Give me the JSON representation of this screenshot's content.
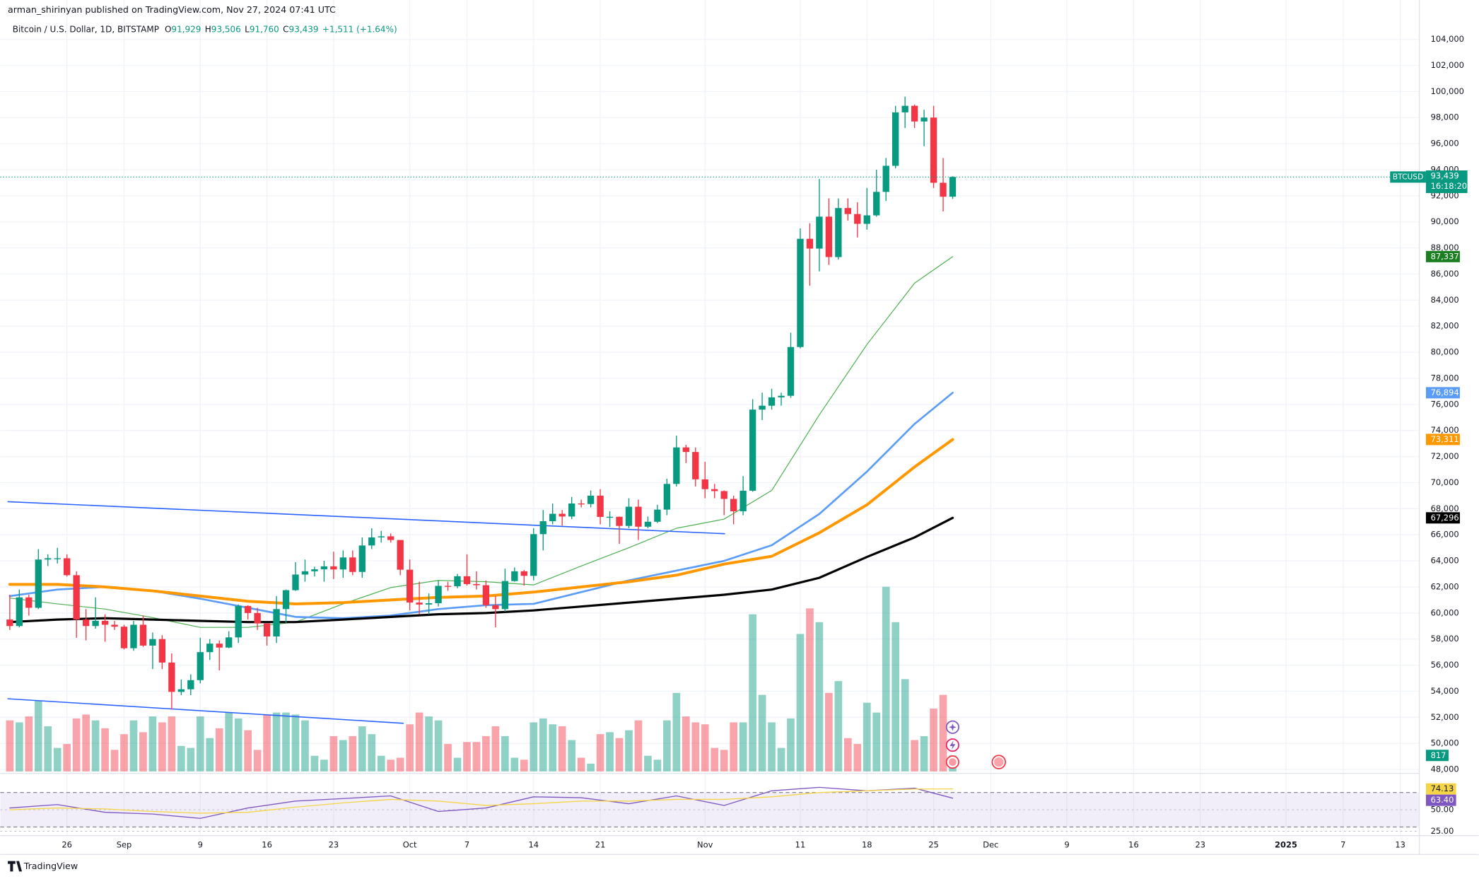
{
  "header": {
    "published": "arman_shirinyan published on TradingView.com, Nov 27, 2024 07:41 UTC",
    "symbol": "Bitcoin / U.S. Dollar, 1D, BITSTAMP",
    "ohlc": [
      {
        "key": "O",
        "value": "91,929"
      },
      {
        "key": "H",
        "value": "93,506"
      },
      {
        "key": "L",
        "value": "91,760"
      },
      {
        "key": "C",
        "value": "93,439"
      }
    ],
    "change": "+1,511 (+1.64%)"
  },
  "footer": "TradingView",
  "chart_data": {
    "type": "candlestick",
    "up_color": "#089981",
    "down_color": "#f23645",
    "x": [
      0,
      1,
      2,
      3,
      4,
      5,
      6,
      7,
      8,
      9,
      10,
      11,
      12,
      13,
      14,
      15,
      16,
      17,
      18,
      19,
      20,
      21,
      22,
      23,
      24,
      25,
      26,
      27,
      28,
      29,
      30,
      31,
      32,
      33,
      34,
      35,
      36,
      37,
      38,
      39,
      40,
      41,
      42,
      43,
      44,
      45,
      46,
      47,
      48,
      49,
      50,
      51,
      52,
      53,
      54,
      55,
      56,
      57,
      58,
      59,
      60,
      61,
      62,
      63,
      64,
      65,
      66,
      67,
      68,
      69,
      70,
      71,
      72,
      73,
      74,
      75,
      76,
      77,
      78,
      79,
      80,
      81,
      82,
      83,
      84,
      85,
      86,
      87,
      88,
      89,
      90,
      91,
      92,
      93,
      94,
      95,
      96,
      97,
      98,
      99
    ],
    "open": [
      59500,
      59000,
      61200,
      60400,
      64100,
      64200,
      64200,
      62900,
      59500,
      59000,
      59400,
      59100,
      58950,
      57300,
      59100,
      57500,
      58000,
      56200,
      53950,
      54150,
      54850,
      57000,
      57650,
      57350,
      58130,
      60540,
      60000,
      59200,
      58200,
      60300,
      61750,
      62950,
      63200,
      63350,
      63580,
      63340,
      64260,
      63150,
      65180,
      65800,
      65880,
      65600,
      63320,
      60800,
      60650,
      60750,
      62080,
      62050,
      62820,
      62220,
      62130,
      60600,
      60300,
      62450,
      63200,
      62850,
      66050,
      67040,
      67610,
      67400,
      68400,
      68360,
      69000,
      67370,
      67380,
      66680,
      68150,
      66620,
      67000,
      67930,
      69900,
      72700,
      72350,
      70250,
      69500,
      69350,
      68750,
      67800,
      69380,
      75600,
      75900,
      76540,
      76660,
      80400,
      88700,
      87950,
      90400,
      87300,
      91060,
      90600,
      89850,
      90500,
      92300,
      94300,
      98400,
      98900,
      97700,
      98000,
      93000,
      91929
    ],
    "high": [
      61400,
      61800,
      61400,
      64900,
      64500,
      65000,
      64500,
      63200,
      60300,
      61200,
      59900,
      59400,
      59100,
      59400,
      59800,
      58500,
      58300,
      56900,
      54900,
      55300,
      58100,
      58000,
      57900,
      58600,
      60650,
      60600,
      60400,
      59200,
      61300,
      61800,
      63900,
      64100,
      63550,
      64000,
      64700,
      64800,
      64800,
      65800,
      66500,
      66300,
      66100,
      65600,
      64100,
      62400,
      61500,
      62500,
      62400,
      63000,
      64500,
      63200,
      62500,
      61300,
      63400,
      63500,
      63300,
      66500,
      67900,
      68400,
      67900,
      68900,
      68700,
      69400,
      69500,
      67800,
      67400,
      68800,
      68700,
      67400,
      68300,
      70300,
      73600,
      72900,
      72700,
      71600,
      69900,
      69400,
      69000,
      70500,
      76400,
      76900,
      77200,
      76900,
      81500,
      89500,
      89900,
      93300,
      91800,
      91800,
      91800,
      91500,
      92600,
      94000,
      94900,
      98900,
      99600,
      99000,
      98600,
      98900,
      94900,
      93506
    ],
    "low": [
      58700,
      58900,
      59800,
      60300,
      63600,
      63800,
      62800,
      58100,
      57900,
      58800,
      57800,
      58700,
      57200,
      57100,
      57400,
      55700,
      55700,
      52600,
      53700,
      53700,
      54600,
      56400,
      55600,
      57300,
      57700,
      59500,
      58700,
      57500,
      57700,
      59200,
      61700,
      62400,
      62800,
      62400,
      62600,
      62700,
      62900,
      62700,
      64900,
      65400,
      65400,
      62900,
      60200,
      59900,
      59900,
      60500,
      61700,
      61900,
      62100,
      61800,
      60400,
      58900,
      60100,
      62400,
      62100,
      62500,
      64800,
      66800,
      66700,
      67200,
      68100,
      68100,
      66800,
      66600,
      65300,
      66500,
      65600,
      66500,
      66900,
      67500,
      69700,
      71500,
      69700,
      68800,
      68800,
      67500,
      66800,
      67500,
      69300,
      74800,
      75600,
      75900,
      76500,
      80300,
      85100,
      86200,
      86700,
      87100,
      90100,
      88800,
      89400,
      90400,
      91600,
      94100,
      97200,
      97200,
      95800,
      92600,
      90800,
      91760
    ],
    "close": [
      59000,
      61200,
      60400,
      64100,
      64200,
      64200,
      62900,
      59500,
      59000,
      59400,
      59100,
      58950,
      57300,
      59100,
      57500,
      58000,
      56200,
      53950,
      54150,
      54850,
      57000,
      57650,
      57350,
      58130,
      60540,
      60000,
      59200,
      58200,
      60300,
      61750,
      62950,
      63200,
      63350,
      63580,
      63340,
      64260,
      63150,
      65180,
      65800,
      65880,
      65600,
      63320,
      60800,
      60650,
      60750,
      62080,
      62050,
      62820,
      62220,
      62130,
      60600,
      60300,
      62450,
      63200,
      62850,
      66050,
      67040,
      67610,
      67400,
      68400,
      68360,
      69000,
      67370,
      67380,
      66680,
      68150,
      66620,
      67000,
      67930,
      69900,
      72700,
      72350,
      70250,
      69500,
      69350,
      68750,
      67800,
      69380,
      75600,
      75900,
      76540,
      76660,
      80400,
      88700,
      87950,
      90400,
      87300,
      91060,
      90600,
      89850,
      90500,
      92300,
      94300,
      98400,
      98900,
      97700,
      98000,
      93000,
      91929,
      93439
    ],
    "last_label": "93,439",
    "symbol_label": "BTCUSD",
    "countdown": "16:18:20",
    "volume": [
      2600,
      2500,
      2800,
      3600,
      2300,
      1200,
      1400,
      2700,
      2900,
      2600,
      2200,
      1100,
      1900,
      2600,
      2000,
      2800,
      2500,
      2800,
      1300,
      1200,
      2800,
      1700,
      2200,
      3000,
      2700,
      2100,
      1100,
      2900,
      3000,
      3000,
      2900,
      2600,
      800,
      600,
      1800,
      1600,
      1800,
      2300,
      1900,
      800,
      600,
      700,
      2400,
      3000,
      2800,
      2600,
      1400,
      700,
      1500,
      1500,
      1800,
      2300,
      1800,
      700,
      600,
      2500,
      2700,
      2400,
      2300,
      1600,
      700,
      400,
      1900,
      2000,
      1700,
      2100,
      2600,
      800,
      600,
      2600,
      4000,
      2800,
      2500,
      2400,
      1200,
      1100,
      2500,
      2500,
      8000,
      3900,
      2500,
      1200,
      2700,
      7000,
      8300,
      7600,
      4000,
      4600,
      1700,
      1400,
      3500,
      3000,
      9400,
      7600,
      4700,
      1600,
      1800,
      3200,
      3900,
      817
    ],
    "volume_ylim": [
      0,
      12000
    ],
    "volume_label": "817",
    "moving_averages": [
      {
        "color": "#4caf50",
        "width": 0.9,
        "x": [
          0,
          5,
          10,
          15,
          20,
          25,
          30,
          35,
          40,
          45,
          50,
          55,
          60,
          65,
          70,
          75,
          80,
          85,
          90,
          95,
          99
        ],
        "values": [
          61150,
          60700,
          60300,
          59650,
          58900,
          58900,
          59300,
          60700,
          61950,
          62500,
          62400,
          62150,
          63600,
          65000,
          66500,
          67200,
          69400,
          75200,
          80600,
          85300,
          87337
        ],
        "last_label": "87,337",
        "label_color": "#1b7e20"
      },
      {
        "color": "#5b9cf6",
        "width": 2,
        "x": [
          0,
          5,
          10,
          15,
          20,
          25,
          30,
          35,
          40,
          45,
          50,
          55,
          60,
          65,
          70,
          75,
          80,
          85,
          90,
          95,
          99
        ],
        "values": [
          61300,
          61800,
          62000,
          61700,
          61100,
          60400,
          59700,
          59600,
          59800,
          60300,
          60600,
          60700,
          61600,
          62500,
          63250,
          64000,
          65200,
          67600,
          70850,
          74500,
          76894
        ],
        "last_label": "76,894",
        "label_color": "#5b9cf6"
      },
      {
        "color": "#ff9800",
        "width": 3,
        "x": [
          0,
          5,
          10,
          15,
          20,
          25,
          30,
          35,
          40,
          45,
          50,
          55,
          60,
          65,
          70,
          75,
          80,
          85,
          90,
          95,
          99
        ],
        "values": [
          62200,
          62200,
          62000,
          61700,
          61300,
          60900,
          60700,
          60800,
          61000,
          61200,
          61300,
          61600,
          62000,
          62400,
          62900,
          63750,
          64350,
          66150,
          68300,
          71200,
          73311
        ],
        "last_label": "73,311",
        "label_color": "#ff9800"
      },
      {
        "color": "#000000",
        "width": 2.4,
        "x": [
          0,
          5,
          10,
          15,
          20,
          25,
          30,
          35,
          40,
          45,
          50,
          55,
          60,
          65,
          70,
          75,
          80,
          85,
          90,
          95,
          99
        ],
        "values": [
          59300,
          59500,
          59600,
          59500,
          59400,
          59300,
          59300,
          59500,
          59700,
          59900,
          60000,
          60200,
          60500,
          60800,
          61100,
          61400,
          61800,
          62700,
          64300,
          65800,
          67296
        ],
        "last_label": "67,296",
        "label_color": "#000000"
      }
    ],
    "trendlines": [
      {
        "color": "#2962ff",
        "x": [
          -0.2,
          75.05
        ],
        "values": [
          68540,
          66080
        ]
      },
      {
        "color": "#2962ff",
        "x": [
          -0.2,
          41.3
        ],
        "values": [
          53420,
          51540
        ]
      }
    ],
    "xlim": [
      -1,
      148
    ],
    "xticks": [
      {
        "value": 6,
        "label": "26"
      },
      {
        "value": 12,
        "label": "Sep"
      },
      {
        "value": 20,
        "label": "9"
      },
      {
        "value": 27,
        "label": "16"
      },
      {
        "value": 34,
        "label": "23"
      },
      {
        "value": 42,
        "label": "Oct"
      },
      {
        "value": 48,
        "label": "7"
      },
      {
        "value": 55,
        "label": "14"
      },
      {
        "value": 62,
        "label": "21"
      },
      {
        "value": 73,
        "label": "Nov"
      },
      {
        "value": 83,
        "label": "11"
      },
      {
        "value": 90,
        "label": "18"
      },
      {
        "value": 97,
        "label": "25"
      },
      {
        "value": 103,
        "label": "Dec"
      },
      {
        "value": 111,
        "label": "9"
      },
      {
        "value": 118,
        "label": "16"
      },
      {
        "value": 125,
        "label": "23"
      },
      {
        "value": 134,
        "label": "2025"
      },
      {
        "value": 140,
        "label": "7"
      },
      {
        "value": 146,
        "label": "13"
      }
    ],
    "ylim": [
      47700,
      105570
    ],
    "yticks": [
      {
        "value": 48000,
        "label": "48,000"
      },
      {
        "value": 50000,
        "label": "50,000"
      },
      {
        "value": 52000,
        "label": "52,000"
      },
      {
        "value": 54000,
        "label": "54,000"
      },
      {
        "value": 56000,
        "label": "56,000"
      },
      {
        "value": 58000,
        "label": "58,000"
      },
      {
        "value": 60000,
        "label": "60,000"
      },
      {
        "value": 62000,
        "label": "62,000"
      },
      {
        "value": 64000,
        "label": "64,000"
      },
      {
        "value": 66000,
        "label": "66,000"
      },
      {
        "value": 68000,
        "label": "68,000"
      },
      {
        "value": 70000,
        "label": "70,000"
      },
      {
        "value": 72000,
        "label": "72,000"
      },
      {
        "value": 74000,
        "label": "74,000"
      },
      {
        "value": 76000,
        "label": "76,000"
      },
      {
        "value": 78000,
        "label": "78,000"
      },
      {
        "value": 80000,
        "label": "80,000"
      },
      {
        "value": 82000,
        "label": "82,000"
      },
      {
        "value": 84000,
        "label": "84,000"
      },
      {
        "value": 86000,
        "label": "86,000"
      },
      {
        "value": 88000,
        "label": "88,000"
      },
      {
        "value": 90000,
        "label": "90,000"
      },
      {
        "value": 92000,
        "label": "92,000"
      },
      {
        "value": 94000,
        "label": "94,000"
      },
      {
        "value": 96000,
        "label": "96,000"
      },
      {
        "value": 98000,
        "label": "98,000"
      },
      {
        "value": 100000,
        "label": "100,000"
      },
      {
        "value": 102000,
        "label": "102,000"
      },
      {
        "value": 104000,
        "label": "104,000"
      }
    ],
    "grid": true,
    "rsi": {
      "ylim": [
        20,
        90
      ],
      "bands": [
        30,
        70
      ],
      "yticks": [
        {
          "value": 50,
          "label": "50.00"
        },
        {
          "value": 25,
          "label": "25.00"
        }
      ],
      "series": [
        {
          "color": "#7e57c2",
          "x": [
            0,
            5,
            10,
            15,
            20,
            25,
            30,
            35,
            40,
            45,
            50,
            55,
            60,
            65,
            70,
            75,
            80,
            85,
            90,
            95,
            99
          ],
          "values": [
            52,
            56,
            47,
            45,
            40,
            52,
            60,
            63,
            66,
            48,
            52,
            65,
            64,
            57,
            66,
            55,
            72,
            76,
            72,
            75,
            63.4
          ],
          "last_label": "63.40"
        },
        {
          "color": "#f5d547",
          "x": [
            0,
            5,
            10,
            15,
            20,
            25,
            30,
            35,
            40,
            45,
            50,
            55,
            60,
            65,
            70,
            75,
            80,
            85,
            90,
            95,
            99
          ],
          "values": [
            50,
            52,
            51,
            48,
            46,
            47,
            53,
            58,
            62,
            60,
            55,
            57,
            60,
            60,
            62,
            62,
            65,
            70,
            72,
            74,
            74.13
          ],
          "last_label": "74.13"
        }
      ]
    }
  }
}
